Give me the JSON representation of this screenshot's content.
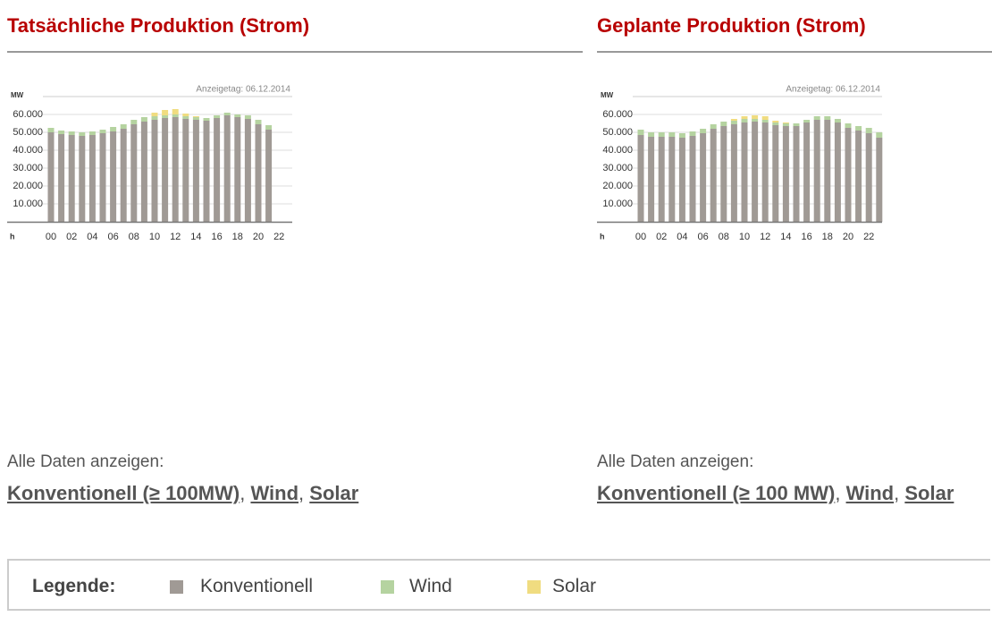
{
  "panels": [
    {
      "title": "Tatsächliche Produktion (Strom)",
      "links_label": "Alle Daten anzeigen:",
      "links": [
        "Konventionell (≥ 100MW)",
        "Wind",
        "Solar"
      ],
      "separator": ","
    },
    {
      "title": "Geplante Produktion (Strom)",
      "links_label": "Alle Daten anzeigen:",
      "links": [
        "Konventionell (≥ 100 MW)",
        "Wind",
        "Solar"
      ],
      "separator": ","
    }
  ],
  "chart_data": [
    {
      "type": "bar",
      "stacked": true,
      "annotation": "Anzeigetag: 06.12.2014",
      "y_label": "MW",
      "x_label": "h",
      "categories": [
        "00",
        null,
        "02",
        null,
        "04",
        null,
        "06",
        null,
        "08",
        null,
        "10",
        null,
        "12",
        null,
        "14",
        null,
        "16",
        null,
        "18",
        null,
        "20",
        null,
        "22",
        null
      ],
      "series": [
        {
          "name": "Konventionell",
          "color": "#a09a95",
          "values": [
            50000,
            49000,
            48500,
            48000,
            48500,
            49500,
            50500,
            52000,
            54500,
            56000,
            57000,
            58000,
            58500,
            57500,
            57000,
            56500,
            58000,
            59500,
            58500,
            57500,
            54500,
            51500,
            null,
            null
          ]
        },
        {
          "name": "Wind",
          "color": "#b5d3a0",
          "values": [
            2500,
            2000,
            2000,
            2000,
            2000,
            2000,
            2500,
            2500,
            2500,
            2500,
            2000,
            1500,
            1500,
            1500,
            1500,
            1500,
            1500,
            1500,
            1500,
            2000,
            2500,
            2500,
            null,
            null
          ]
        },
        {
          "name": "Solar",
          "color": "#f0dc80",
          "values": [
            0,
            0,
            0,
            0,
            0,
            0,
            0,
            0,
            0,
            0,
            2000,
            3000,
            3000,
            1500,
            500,
            0,
            0,
            0,
            0,
            0,
            0,
            0,
            null,
            null
          ]
        }
      ],
      "ylim": [
        0,
        70000
      ],
      "yticks": [
        {
          "value": 10000,
          "label": "10.000"
        },
        {
          "value": 20000,
          "label": "20.000"
        },
        {
          "value": 30000,
          "label": "30.000"
        },
        {
          "value": 40000,
          "label": "40.000"
        },
        {
          "value": 50000,
          "label": "50.000"
        },
        {
          "value": 60000,
          "label": "60.000"
        }
      ],
      "grid": true
    },
    {
      "type": "bar",
      "stacked": true,
      "annotation": "Anzeigetag: 06.12.2014",
      "y_label": "MW",
      "x_label": "h",
      "categories": [
        "00",
        null,
        "02",
        null,
        "04",
        null,
        "06",
        null,
        "08",
        null,
        "10",
        null,
        "12",
        null,
        "14",
        null,
        "16",
        null,
        "18",
        null,
        "20",
        null,
        "22",
        null
      ],
      "series": [
        {
          "name": "Konventionell",
          "color": "#a09a95",
          "values": [
            48500,
            47500,
            47500,
            47500,
            47000,
            48000,
            49500,
            52000,
            53500,
            54500,
            55500,
            56000,
            55500,
            54000,
            53500,
            53500,
            55500,
            57000,
            57000,
            55500,
            52500,
            51000,
            49500,
            47000
          ]
        },
        {
          "name": "Wind",
          "color": "#b5d3a0",
          "values": [
            3000,
            2500,
            2500,
            2500,
            2500,
            2500,
            2500,
            2500,
            2500,
            2000,
            2000,
            1500,
            1500,
            1500,
            1500,
            1500,
            1500,
            2000,
            2000,
            2000,
            2500,
            2500,
            3000,
            3000
          ]
        },
        {
          "name": "Solar",
          "color": "#f0dc80",
          "values": [
            0,
            0,
            0,
            0,
            0,
            0,
            0,
            0,
            0,
            1000,
            1500,
            2000,
            2000,
            1000,
            500,
            0,
            0,
            0,
            0,
            0,
            0,
            0,
            0,
            0
          ]
        }
      ],
      "ylim": [
        0,
        70000
      ],
      "yticks": [
        {
          "value": 10000,
          "label": "10.000"
        },
        {
          "value": 20000,
          "label": "20.000"
        },
        {
          "value": 30000,
          "label": "30.000"
        },
        {
          "value": 40000,
          "label": "40.000"
        },
        {
          "value": 50000,
          "label": "50.000"
        },
        {
          "value": 60000,
          "label": "60.000"
        }
      ],
      "grid": true
    }
  ],
  "legend": {
    "title": "Legende:",
    "items": [
      {
        "name": "Konventionell",
        "color": "#a09a95"
      },
      {
        "name": "Wind",
        "color": "#b5d3a0"
      },
      {
        "name": "Solar",
        "color": "#f0dc80"
      }
    ]
  }
}
